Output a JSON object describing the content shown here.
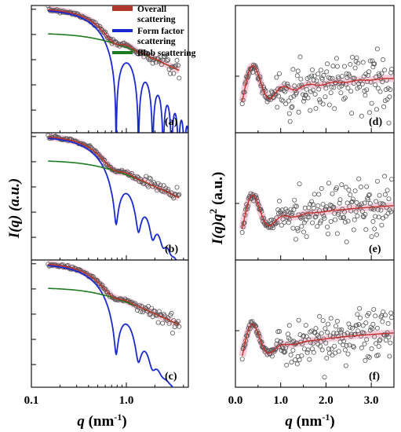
{
  "legend": {
    "entries": [
      {
        "name": "Overall",
        "name2": "scattering",
        "color": "#a0322a"
      },
      {
        "name": "Form factor",
        "name2": "scattering",
        "color": "#1a2ad0"
      },
      {
        "name": "Blob scattering",
        "name2": "",
        "color": "#1e7a1e"
      }
    ]
  },
  "colors": {
    "overall": "#c4302b",
    "overall_halo": "#f4b8cc",
    "form": "#1a2ad0",
    "blob": "#1e7a1e",
    "data_marker": "#555555"
  },
  "left_axis": {
    "ylabel": "I(q) (a.u.)",
    "xlabel_q": "q",
    "xlabel_unit": " (nm",
    "xlabel_exp": "-1",
    "xlabel_close": ")",
    "xticks": [
      "0.1",
      "1.0"
    ],
    "xscale": "log"
  },
  "right_axis": {
    "ylabel_main": "I(q)q",
    "ylabel_exp": "2",
    "ylabel_unit": " (a.u.)",
    "xlabel_q": "q",
    "xlabel_unit": " (nm",
    "xlabel_exp": "-1",
    "xlabel_close": ")",
    "xticks": [
      "0.0",
      "1.0",
      "2.0",
      "3.0"
    ]
  },
  "chart_data": [
    {
      "panel": "(a)",
      "type": "scatter",
      "xscale": "log",
      "yscale": "log",
      "xlim": [
        0.1,
        4.5
      ],
      "series": [
        "Overall scattering",
        "Form factor scattering",
        "Blob scattering"
      ],
      "form_minima_q": [
        0.78,
        1.37,
        1.97,
        2.56
      ]
    },
    {
      "panel": "(b)",
      "type": "scatter",
      "xscale": "log",
      "yscale": "log",
      "xlim": [
        0.1,
        4.5
      ],
      "series": [
        "Overall scattering",
        "Form factor scattering",
        "Blob scattering"
      ],
      "form_minima_q": [
        0.78
      ]
    },
    {
      "panel": "(c)",
      "type": "scatter",
      "xscale": "log",
      "yscale": "log",
      "xlim": [
        0.1,
        4.5
      ],
      "series": [
        "Overall scattering",
        "Form factor scattering",
        "Blob scattering"
      ],
      "form_minima_q": [
        0.78
      ]
    },
    {
      "panel": "(d)",
      "type": "scatter",
      "xlim": [
        0.0,
        3.5
      ],
      "peak_q": 0.35,
      "min_q": 0.75
    },
    {
      "panel": "(e)",
      "type": "scatter",
      "xlim": [
        0.0,
        3.5
      ],
      "peak_q": 0.35,
      "min_q": 0.75
    },
    {
      "panel": "(f)",
      "type": "scatter",
      "xlim": [
        0.0,
        3.5
      ],
      "peak_q": 0.35,
      "min_q": 0.75
    }
  ]
}
